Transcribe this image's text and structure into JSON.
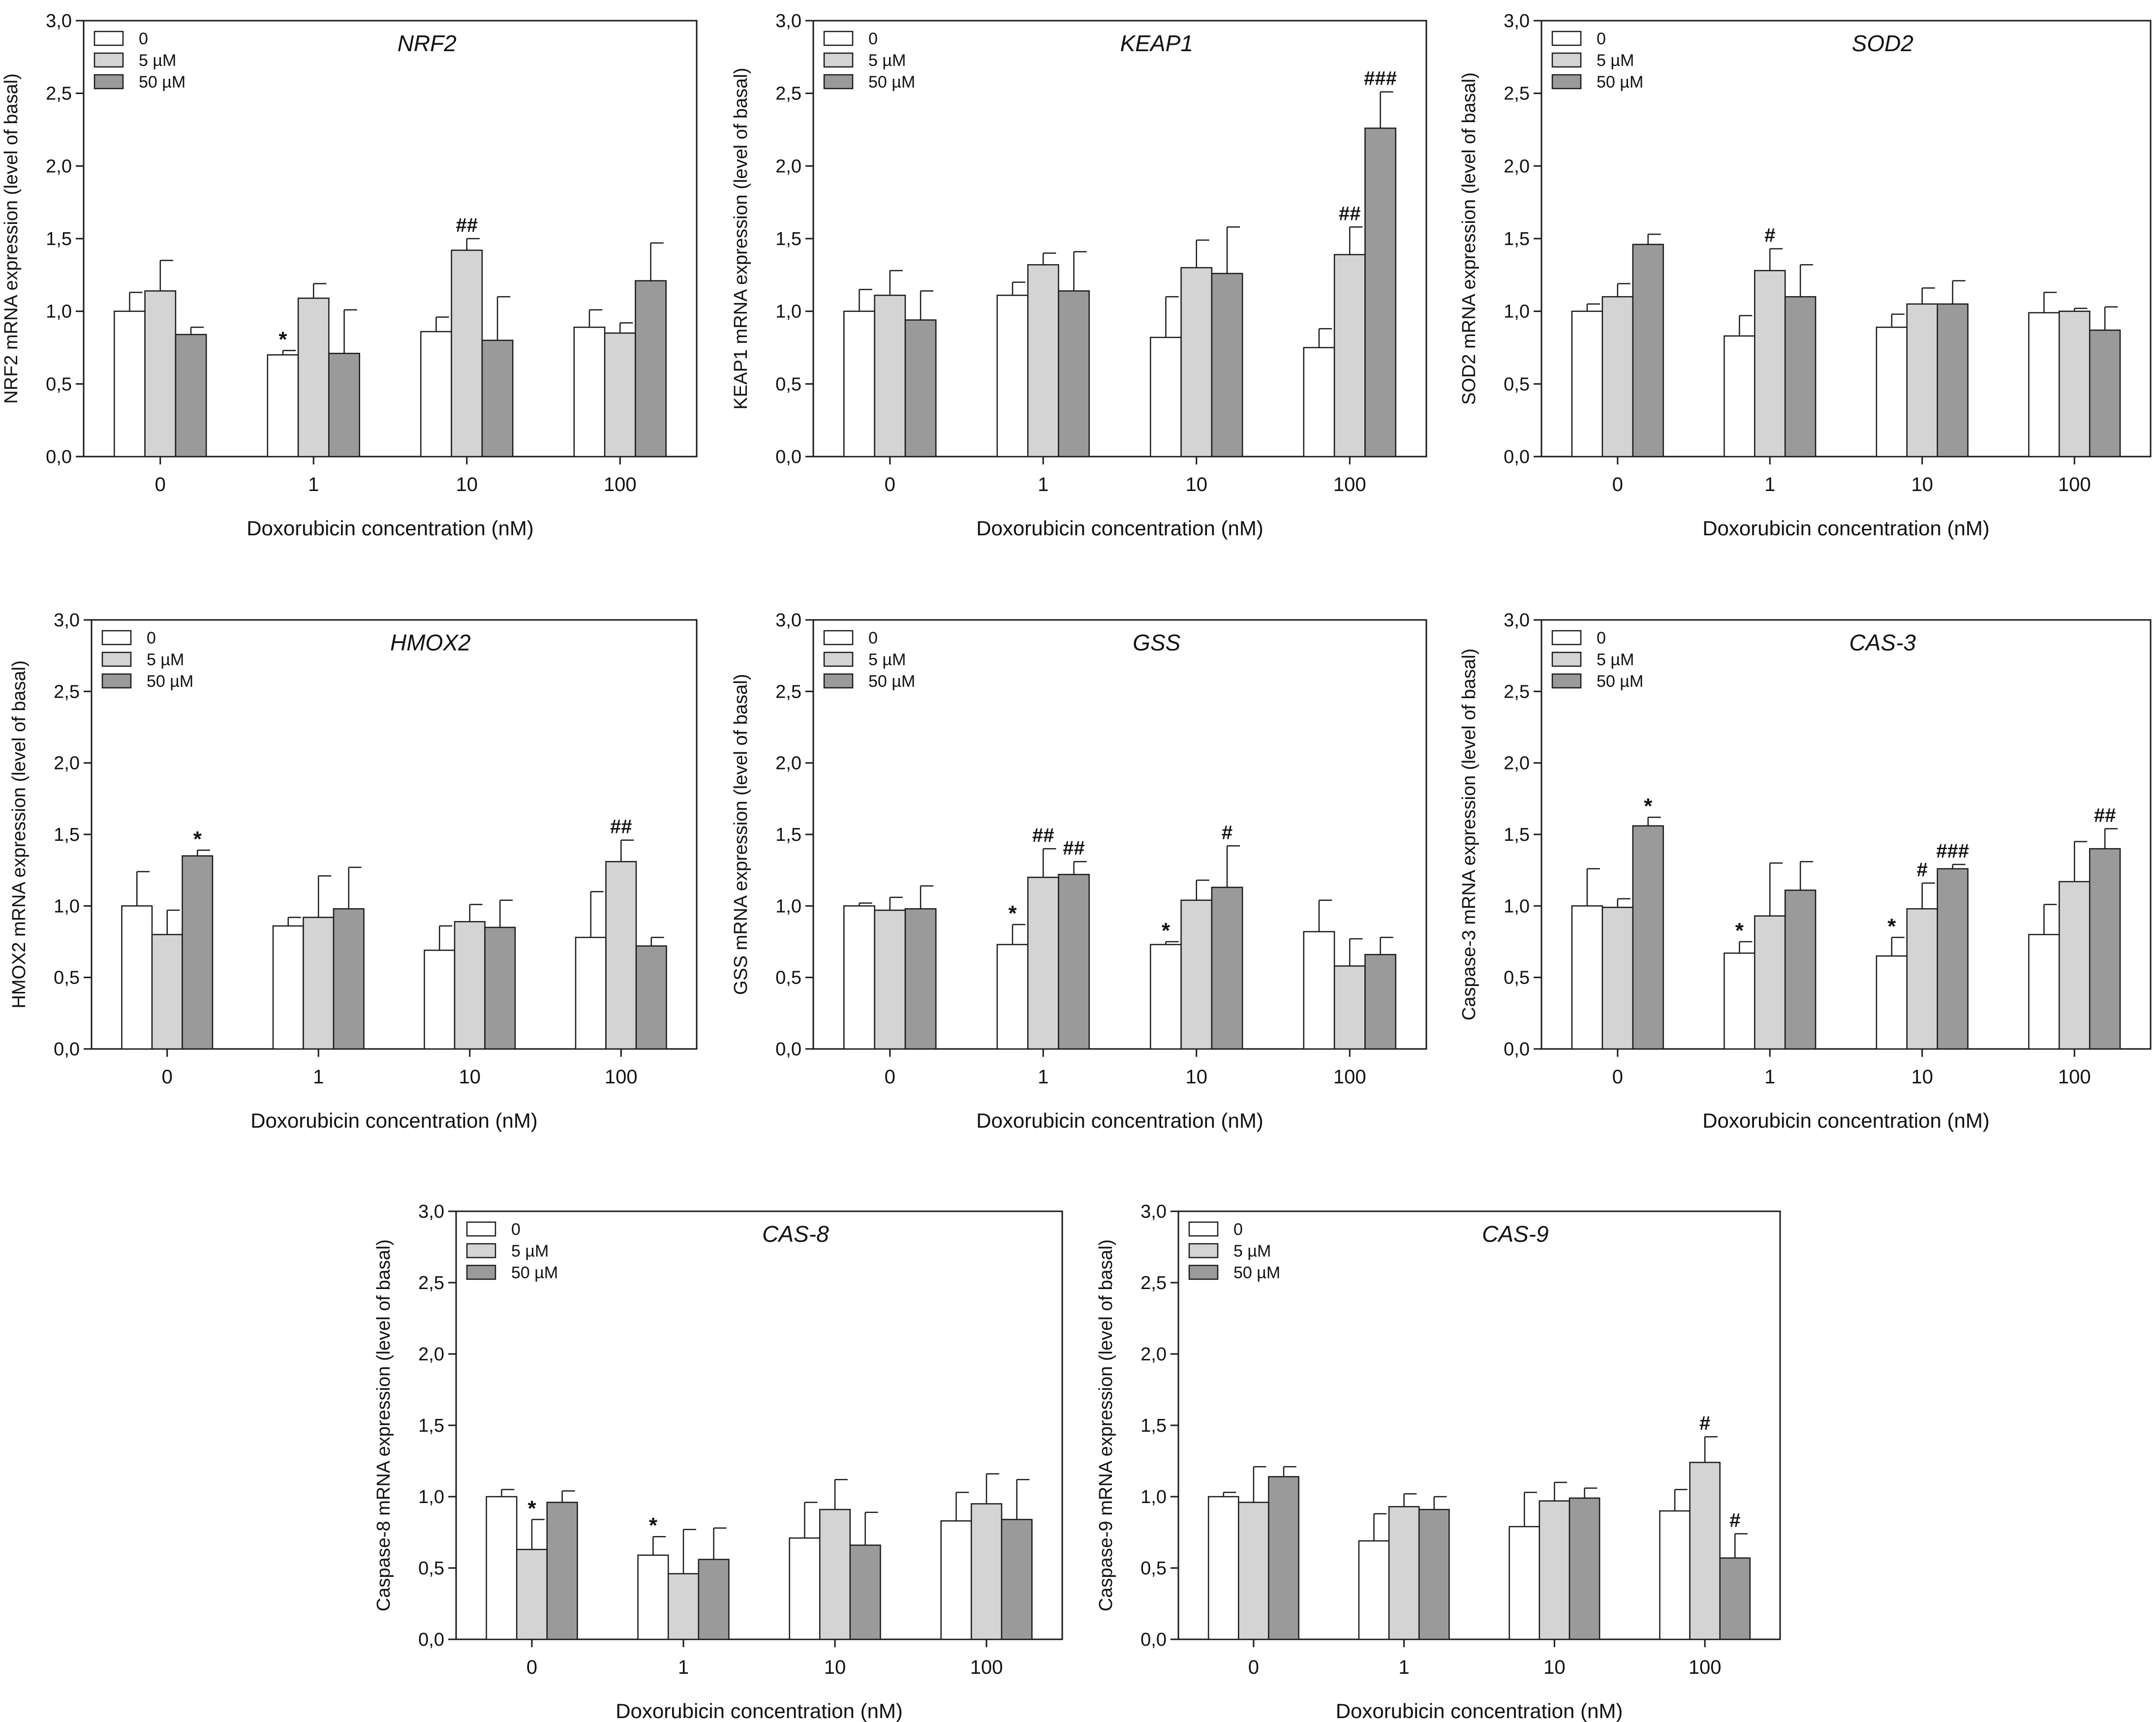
{
  "colors": {
    "s0": "#ffffff",
    "s1": "#d4d4d4",
    "s2": "#9a9a9a",
    "stroke": "#1a1a1a"
  },
  "legend": [
    "0",
    "5 µM",
    "50 µM"
  ],
  "chart_data": [
    {
      "type": "bar",
      "title": "NRF2",
      "ylabel": "NRF2 mRNA expression (level of basal)",
      "xlabel": "Doxorubicin concentration (nM)",
      "categories": [
        "0",
        "1",
        "10",
        "100"
      ],
      "ylim": [
        0,
        3.0
      ],
      "yticks": [
        "0,0",
        "0,5",
        "1,0",
        "1,5",
        "2,0",
        "2,5",
        "3,0"
      ],
      "series": [
        {
          "name": "0",
          "values": [
            1.0,
            0.7,
            0.86,
            0.89
          ],
          "errors": [
            0.13,
            0.03,
            0.1,
            0.12
          ]
        },
        {
          "name": "5 µM",
          "values": [
            1.14,
            1.09,
            1.42,
            0.85
          ],
          "errors": [
            0.21,
            0.1,
            0.08,
            0.07
          ]
        },
        {
          "name": "50 µM",
          "values": [
            0.84,
            0.71,
            0.8,
            1.21
          ],
          "errors": [
            0.05,
            0.3,
            0.3,
            0.26
          ]
        }
      ],
      "annotations": [
        {
          "category": 1,
          "series": 0,
          "text": "*"
        },
        {
          "category": 2,
          "series": 1,
          "text": "##"
        }
      ]
    },
    {
      "type": "bar",
      "title": "KEAP1",
      "ylabel": "KEAP1 mRNA expression (level of basal)",
      "xlabel": "Doxorubicin concentration (nM)",
      "categories": [
        "0",
        "1",
        "10",
        "100"
      ],
      "ylim": [
        0,
        3.0
      ],
      "yticks": [
        "0,0",
        "0,5",
        "1,0",
        "1,5",
        "2,0",
        "2,5",
        "3,0"
      ],
      "series": [
        {
          "name": "0",
          "values": [
            1.0,
            1.11,
            0.82,
            0.75
          ],
          "errors": [
            0.15,
            0.09,
            0.28,
            0.13
          ]
        },
        {
          "name": "5 µM",
          "values": [
            1.11,
            1.32,
            1.3,
            1.39
          ],
          "errors": [
            0.17,
            0.08,
            0.19,
            0.19
          ]
        },
        {
          "name": "50 µM",
          "values": [
            0.94,
            1.14,
            1.26,
            2.26
          ],
          "errors": [
            0.2,
            0.27,
            0.32,
            0.25
          ]
        }
      ],
      "annotations": [
        {
          "category": 3,
          "series": 1,
          "text": "##"
        },
        {
          "category": 3,
          "series": 2,
          "text": "###"
        }
      ]
    },
    {
      "type": "bar",
      "title": "SOD2",
      "ylabel": "SOD2 mRNA expression (level of basal)",
      "xlabel": "Doxorubicin concentration (nM)",
      "categories": [
        "0",
        "1",
        "10",
        "100"
      ],
      "ylim": [
        0,
        3.0
      ],
      "yticks": [
        "0,0",
        "0,5",
        "1,0",
        "1,5",
        "2,0",
        "2,5",
        "3,0"
      ],
      "series": [
        {
          "name": "0",
          "values": [
            1.0,
            0.83,
            0.89,
            0.99
          ],
          "errors": [
            0.05,
            0.14,
            0.09,
            0.14
          ]
        },
        {
          "name": "5 µM",
          "values": [
            1.1,
            1.28,
            1.05,
            1.0
          ],
          "errors": [
            0.09,
            0.15,
            0.11,
            0.02
          ]
        },
        {
          "name": "50 µM",
          "values": [
            1.46,
            1.1,
            1.05,
            0.87
          ],
          "errors": [
            0.07,
            0.22,
            0.16,
            0.16
          ]
        }
      ],
      "annotations": [
        {
          "category": 1,
          "series": 1,
          "text": "#"
        }
      ]
    },
    {
      "type": "bar",
      "title": "HMOX2",
      "ylabel": "HMOX2 mRNA expression (level of basal)",
      "xlabel": "Doxorubicin concentration (nM)",
      "categories": [
        "0",
        "1",
        "10",
        "100"
      ],
      "ylim": [
        0,
        3.0
      ],
      "yticks": [
        "0,0",
        "0,5",
        "1,0",
        "1,5",
        "2,0",
        "2,5",
        "3,0"
      ],
      "series": [
        {
          "name": "0",
          "values": [
            1.0,
            0.86,
            0.69,
            0.78
          ],
          "errors": [
            0.24,
            0.06,
            0.17,
            0.32
          ]
        },
        {
          "name": "5 µM",
          "values": [
            0.8,
            0.92,
            0.89,
            1.31
          ],
          "errors": [
            0.17,
            0.29,
            0.12,
            0.15
          ]
        },
        {
          "name": "50 µM",
          "values": [
            1.35,
            0.98,
            0.85,
            0.72
          ],
          "errors": [
            0.04,
            0.29,
            0.19,
            0.06
          ]
        }
      ],
      "annotations": [
        {
          "category": 0,
          "series": 2,
          "text": "*"
        },
        {
          "category": 3,
          "series": 1,
          "text": "##"
        }
      ]
    },
    {
      "type": "bar",
      "title": "GSS",
      "ylabel": "GSS mRNA expression (level of basal)",
      "xlabel": "Doxorubicin concentration (nM)",
      "categories": [
        "0",
        "1",
        "10",
        "100"
      ],
      "ylim": [
        0,
        3.0
      ],
      "yticks": [
        "0,0",
        "0,5",
        "1,0",
        "1,5",
        "2,0",
        "2,5",
        "3,0"
      ],
      "series": [
        {
          "name": "0",
          "values": [
            1.0,
            0.73,
            0.73,
            0.82
          ],
          "errors": [
            0.02,
            0.14,
            0.02,
            0.22
          ]
        },
        {
          "name": "5 µM",
          "values": [
            0.97,
            1.2,
            1.04,
            0.58
          ],
          "errors": [
            0.09,
            0.2,
            0.14,
            0.19
          ]
        },
        {
          "name": "50 µM",
          "values": [
            0.98,
            1.22,
            1.13,
            0.66
          ],
          "errors": [
            0.16,
            0.09,
            0.29,
            0.12
          ]
        }
      ],
      "annotations": [
        {
          "category": 1,
          "series": 0,
          "text": "*"
        },
        {
          "category": 1,
          "series": 1,
          "text": "##"
        },
        {
          "category": 1,
          "series": 2,
          "text": "##"
        },
        {
          "category": 2,
          "series": 0,
          "text": "*"
        },
        {
          "category": 2,
          "series": 2,
          "text": "#"
        }
      ]
    },
    {
      "type": "bar",
      "title": "CAS-3",
      "ylabel": "Caspase-3 mRNA expression (level of basal)",
      "xlabel": "Doxorubicin concentration (nM)",
      "categories": [
        "0",
        "1",
        "10",
        "100"
      ],
      "ylim": [
        0,
        3.0
      ],
      "yticks": [
        "0,0",
        "0,5",
        "1,0",
        "1,5",
        "2,0",
        "2,5",
        "3,0"
      ],
      "series": [
        {
          "name": "0",
          "values": [
            1.0,
            0.67,
            0.65,
            0.8
          ],
          "errors": [
            0.26,
            0.08,
            0.13,
            0.21
          ]
        },
        {
          "name": "5 µM",
          "values": [
            0.99,
            0.93,
            0.98,
            1.17
          ],
          "errors": [
            0.06,
            0.37,
            0.18,
            0.28
          ]
        },
        {
          "name": "50 µM",
          "values": [
            1.56,
            1.11,
            1.26,
            1.4
          ],
          "errors": [
            0.06,
            0.2,
            0.03,
            0.14
          ]
        }
      ],
      "annotations": [
        {
          "category": 0,
          "series": 2,
          "text": "*"
        },
        {
          "category": 1,
          "series": 0,
          "text": "*"
        },
        {
          "category": 2,
          "series": 0,
          "text": "*"
        },
        {
          "category": 2,
          "series": 1,
          "text": "#"
        },
        {
          "category": 2,
          "series": 2,
          "text": "###"
        },
        {
          "category": 3,
          "series": 2,
          "text": "##"
        }
      ]
    },
    {
      "type": "bar",
      "title": "CAS-8",
      "ylabel": "Caspase-8 mRNA expression (level of basal)",
      "xlabel": "Doxorubicin concentration (nM)",
      "categories": [
        "0",
        "1",
        "10",
        "100"
      ],
      "ylim": [
        0,
        3.0
      ],
      "yticks": [
        "0,0",
        "0,5",
        "1,0",
        "1,5",
        "2,0",
        "2,5",
        "3,0"
      ],
      "series": [
        {
          "name": "0",
          "values": [
            1.0,
            0.59,
            0.71,
            0.83
          ],
          "errors": [
            0.05,
            0.13,
            0.25,
            0.2
          ]
        },
        {
          "name": "5 µM",
          "values": [
            0.63,
            0.46,
            0.91,
            0.95
          ],
          "errors": [
            0.21,
            0.31,
            0.21,
            0.21
          ]
        },
        {
          "name": "50 µM",
          "values": [
            0.96,
            0.56,
            0.66,
            0.84
          ],
          "errors": [
            0.08,
            0.22,
            0.23,
            0.28
          ]
        }
      ],
      "annotations": [
        {
          "category": 0,
          "series": 1,
          "text": "*"
        },
        {
          "category": 1,
          "series": 0,
          "text": "*"
        }
      ]
    },
    {
      "type": "bar",
      "title": "CAS-9",
      "ylabel": "Caspase-9 mRNA expression (level of basal)",
      "xlabel": "Doxorubicin concentration (nM)",
      "categories": [
        "0",
        "1",
        "10",
        "100"
      ],
      "ylim": [
        0,
        3.0
      ],
      "yticks": [
        "0,0",
        "0,5",
        "1,0",
        "1,5",
        "2,0",
        "2,5",
        "3,0"
      ],
      "series": [
        {
          "name": "0",
          "values": [
            1.0,
            0.69,
            0.79,
            0.9
          ],
          "errors": [
            0.03,
            0.19,
            0.24,
            0.15
          ]
        },
        {
          "name": "5 µM",
          "values": [
            0.96,
            0.93,
            0.97,
            1.24
          ],
          "errors": [
            0.25,
            0.09,
            0.13,
            0.18
          ]
        },
        {
          "name": "50 µM",
          "values": [
            1.14,
            0.91,
            0.99,
            0.57
          ],
          "errors": [
            0.07,
            0.09,
            0.07,
            0.17
          ]
        }
      ],
      "annotations": [
        {
          "category": 3,
          "series": 1,
          "text": "#"
        },
        {
          "category": 3,
          "series": 2,
          "text": "#"
        }
      ]
    }
  ]
}
